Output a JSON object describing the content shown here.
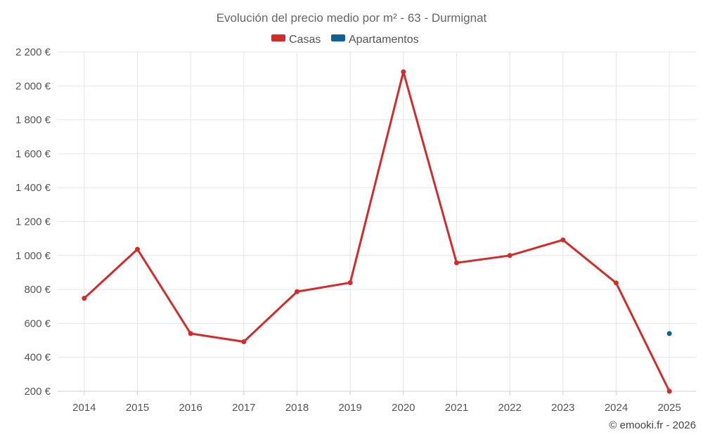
{
  "chart_data": {
    "type": "line",
    "title": "Evolución del precio medio por m² - 63 - Durmignat",
    "categories": [
      "2014",
      "2015",
      "2016",
      "2017",
      "2018",
      "2019",
      "2020",
      "2021",
      "2022",
      "2023",
      "2024",
      "2025"
    ],
    "series": [
      {
        "name": "Casas",
        "color": "#d32a2a",
        "values": [
          748,
          1037,
          540,
          492,
          787,
          840,
          2083,
          957,
          1000,
          1092,
          838,
          200
        ]
      },
      {
        "name": "Apartamentos",
        "color": "#0e6298",
        "values": [
          null,
          null,
          null,
          null,
          null,
          null,
          null,
          null,
          null,
          null,
          null,
          540
        ]
      }
    ],
    "ylim": [
      200,
      2200
    ],
    "yticks": [
      200,
      400,
      600,
      800,
      1000,
      1200,
      1400,
      1600,
      1800,
      2000,
      2200
    ],
    "ytick_labels": [
      "200 €",
      "400 €",
      "600 €",
      "800 €",
      "1 000 €",
      "1 200 €",
      "1 400 €",
      "1 600 €",
      "1 800 €",
      "2 000 €",
      "2 200 €"
    ],
    "xlabel": "",
    "ylabel": "",
    "legend": "top-center",
    "grid": true
  },
  "credit": "© emooki.fr - 2026"
}
